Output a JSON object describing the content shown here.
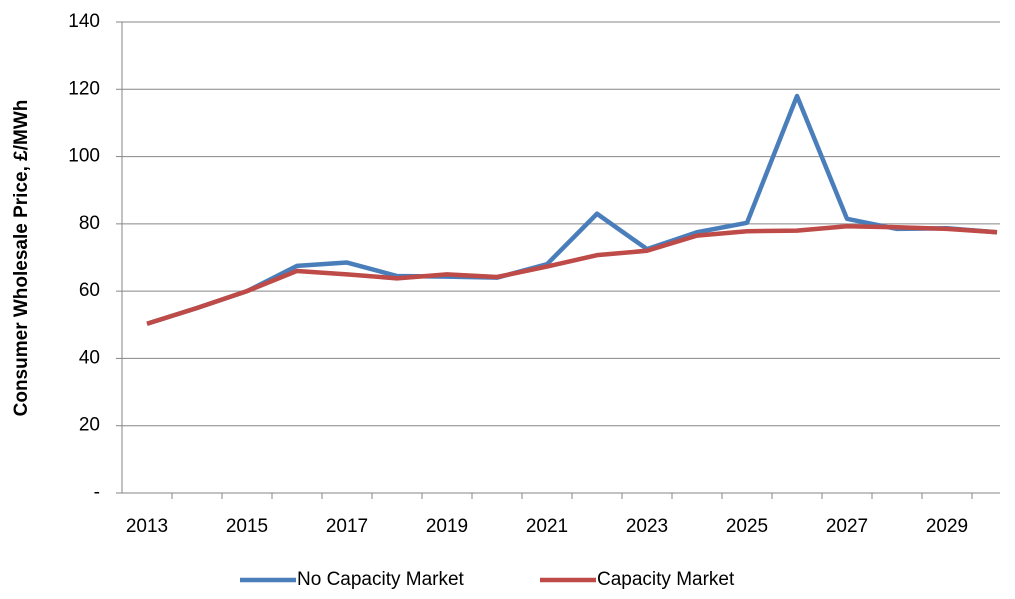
{
  "chart_data": {
    "type": "line",
    "y_label": "Consumer Wholesale Price, £/MWh",
    "categories": [
      "2013",
      null,
      "2015",
      null,
      "2017",
      null,
      "2019",
      null,
      "2021",
      null,
      "2023",
      null,
      "2025",
      null,
      "2027",
      null,
      "2029",
      null
    ],
    "series": [
      {
        "name": "No Capacity Market",
        "color": "#4a7ebb",
        "values": [
          50.3,
          55,
          60,
          67.5,
          68.5,
          64.5,
          64.3,
          64,
          68,
          83,
          72.5,
          77.5,
          80.3,
          118,
          81.5,
          78.5,
          78.7,
          77.5
        ]
      },
      {
        "name": "Capacity Market",
        "color": "#be4b48",
        "values": [
          50.3,
          55,
          60,
          66,
          65,
          63.8,
          65,
          64.2,
          67.3,
          70.7,
          72,
          76.5,
          77.8,
          78,
          79.3,
          79,
          78.5,
          77.5
        ]
      }
    ],
    "ylim": [
      0,
      140
    ],
    "yticks": [
      {
        "value": 0,
        "label": "-"
      },
      20,
      40,
      60,
      80,
      100,
      120,
      140
    ],
    "grid": true,
    "legend": "bottom"
  }
}
